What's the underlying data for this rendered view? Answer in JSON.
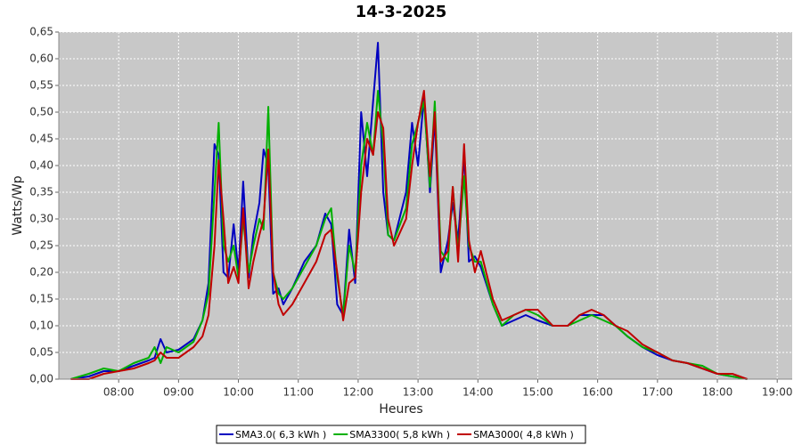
{
  "chart_data": {
    "type": "line",
    "title": "14-3-2025",
    "x_label": "Heures",
    "y_label": "Watts/Wp",
    "x": [
      7.2,
      7.5,
      7.75,
      8.0,
      8.25,
      8.5,
      8.6,
      8.7,
      8.8,
      9.0,
      9.25,
      9.4,
      9.5,
      9.6,
      9.67,
      9.75,
      9.83,
      9.92,
      10.0,
      10.08,
      10.17,
      10.25,
      10.35,
      10.42,
      10.5,
      10.58,
      10.67,
      10.75,
      10.9,
      11.1,
      11.3,
      11.45,
      11.55,
      11.65,
      11.75,
      11.85,
      11.95,
      12.05,
      12.15,
      12.25,
      12.33,
      12.42,
      12.5,
      12.6,
      12.8,
      12.9,
      13.0,
      13.1,
      13.2,
      13.28,
      13.38,
      13.5,
      13.58,
      13.67,
      13.77,
      13.85,
      13.95,
      14.05,
      14.25,
      14.4,
      14.6,
      14.8,
      15.0,
      15.25,
      15.5,
      15.7,
      15.9,
      16.1,
      16.3,
      16.5,
      16.75,
      17.0,
      17.25,
      17.5,
      17.75,
      18.0,
      18.25,
      18.5
    ],
    "series": [
      {
        "name": "SMA3.0( 6,3 kWh )",
        "color": "#0000c0",
        "values": [
          0,
          0.005,
          0.015,
          0.015,
          0.025,
          0.035,
          0.04,
          0.075,
          0.05,
          0.055,
          0.075,
          0.11,
          0.18,
          0.44,
          0.42,
          0.2,
          0.19,
          0.29,
          0.2,
          0.37,
          0.19,
          0.27,
          0.33,
          0.43,
          0.4,
          0.16,
          0.17,
          0.14,
          0.17,
          0.22,
          0.25,
          0.31,
          0.29,
          0.14,
          0.12,
          0.28,
          0.18,
          0.5,
          0.38,
          0.52,
          0.63,
          0.35,
          0.27,
          0.26,
          0.35,
          0.48,
          0.4,
          0.53,
          0.35,
          0.49,
          0.2,
          0.26,
          0.33,
          0.26,
          0.42,
          0.22,
          0.23,
          0.21,
          0.14,
          0.1,
          0.11,
          0.12,
          0.11,
          0.1,
          0.1,
          0.12,
          0.12,
          0.12,
          0.1,
          0.08,
          0.06,
          0.045,
          0.035,
          0.03,
          0.02,
          0.01,
          0.005,
          0
        ]
      },
      {
        "name": "SMA3300( 5,8 kWh )",
        "color": "#00b000",
        "values": [
          0,
          0.01,
          0.02,
          0.015,
          0.03,
          0.04,
          0.06,
          0.03,
          0.06,
          0.05,
          0.07,
          0.11,
          0.16,
          0.35,
          0.48,
          0.25,
          0.22,
          0.25,
          0.19,
          0.3,
          0.2,
          0.25,
          0.3,
          0.28,
          0.51,
          0.2,
          0.16,
          0.15,
          0.17,
          0.21,
          0.25,
          0.3,
          0.32,
          0.19,
          0.12,
          0.25,
          0.2,
          0.4,
          0.48,
          0.42,
          0.54,
          0.44,
          0.27,
          0.26,
          0.32,
          0.44,
          0.48,
          0.52,
          0.36,
          0.52,
          0.24,
          0.22,
          0.36,
          0.24,
          0.38,
          0.25,
          0.22,
          0.22,
          0.14,
          0.1,
          0.12,
          0.13,
          0.12,
          0.1,
          0.1,
          0.11,
          0.12,
          0.11,
          0.1,
          0.08,
          0.06,
          0.05,
          0.035,
          0.03,
          0.025,
          0.01,
          0.005,
          0
        ]
      },
      {
        "name": "SMA3000( 4,8 kWh )",
        "color": "#c00000",
        "values": [
          0,
          0,
          0.01,
          0.015,
          0.02,
          0.03,
          0.035,
          0.05,
          0.04,
          0.04,
          0.06,
          0.08,
          0.12,
          0.25,
          0.41,
          0.3,
          0.18,
          0.21,
          0.18,
          0.32,
          0.17,
          0.22,
          0.27,
          0.3,
          0.43,
          0.2,
          0.14,
          0.12,
          0.14,
          0.18,
          0.22,
          0.27,
          0.28,
          0.2,
          0.11,
          0.18,
          0.19,
          0.35,
          0.45,
          0.42,
          0.5,
          0.47,
          0.3,
          0.25,
          0.3,
          0.4,
          0.48,
          0.54,
          0.38,
          0.5,
          0.22,
          0.24,
          0.36,
          0.22,
          0.44,
          0.26,
          0.2,
          0.24,
          0.15,
          0.11,
          0.12,
          0.13,
          0.13,
          0.1,
          0.1,
          0.12,
          0.13,
          0.12,
          0.1,
          0.09,
          0.065,
          0.05,
          0.035,
          0.03,
          0.02,
          0.01,
          0.01,
          0
        ]
      }
    ],
    "xlim": [
      7,
      19.25
    ],
    "xticks": [
      {
        "value": 8,
        "label": "08:00"
      },
      {
        "value": 9,
        "label": "09:00"
      },
      {
        "value": 10,
        "label": "10:00"
      },
      {
        "value": 11,
        "label": "11:00"
      },
      {
        "value": 12,
        "label": "12:00"
      },
      {
        "value": 13,
        "label": "13:00"
      },
      {
        "value": 14,
        "label": "14:00"
      },
      {
        "value": 15,
        "label": "15:00"
      },
      {
        "value": 16,
        "label": "16:00"
      },
      {
        "value": 17,
        "label": "17:00"
      },
      {
        "value": 18,
        "label": "18:00"
      },
      {
        "value": 19,
        "label": "19:00"
      }
    ],
    "ylim": [
      0,
      0.65
    ],
    "yticks": [
      {
        "value": 0,
        "label": "0,00"
      },
      {
        "value": 0.05,
        "label": "0,05"
      },
      {
        "value": 0.1,
        "label": "0,10"
      },
      {
        "value": 0.15,
        "label": "0,15"
      },
      {
        "value": 0.2,
        "label": "0,20"
      },
      {
        "value": 0.25,
        "label": "0,25"
      },
      {
        "value": 0.3,
        "label": "0,30"
      },
      {
        "value": 0.35,
        "label": "0,35"
      },
      {
        "value": 0.4,
        "label": "0,40"
      },
      {
        "value": 0.45,
        "label": "0,45"
      },
      {
        "value": 0.5,
        "label": "0,50"
      },
      {
        "value": 0.55,
        "label": "0,55"
      },
      {
        "value": 0.6,
        "label": "0,60"
      },
      {
        "value": 0.65,
        "label": "0,65"
      }
    ],
    "grid": true,
    "legend": "bottom"
  }
}
